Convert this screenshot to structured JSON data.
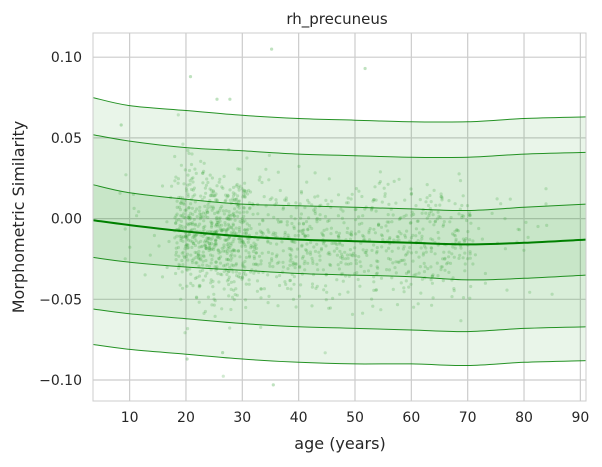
{
  "chart_data": {
    "type": "line",
    "title": "rh_precuneus",
    "xlabel": "age (years)",
    "ylabel": "Morphometric Similarity",
    "xlim": [
      3.5,
      91
    ],
    "ylim": [
      -0.113,
      0.115
    ],
    "xticks": [
      10,
      20,
      30,
      40,
      50,
      60,
      70,
      80,
      90
    ],
    "yticks": [
      -0.1,
      -0.05,
      0.0,
      0.05,
      0.1
    ],
    "ytick_labels": [
      "−0.10",
      "−0.05",
      "0.00",
      "0.05",
      "0.10"
    ],
    "grid": true,
    "line_color": "#008000",
    "fill_color": "#2ca02c",
    "point_color": "#2ca02c",
    "x": [
      3.5,
      10,
      20,
      30,
      40,
      50,
      60,
      70,
      80,
      91
    ],
    "series": [
      {
        "values": [
          0.075,
          0.07,
          0.067,
          0.064,
          0.062,
          0.061,
          0.06,
          0.06,
          0.062,
          0.063
        ]
      },
      {
        "values": [
          0.052,
          0.048,
          0.044,
          0.042,
          0.04,
          0.039,
          0.038,
          0.038,
          0.04,
          0.041
        ]
      },
      {
        "values": [
          0.021,
          0.016,
          0.012,
          0.009,
          0.008,
          0.007,
          0.006,
          0.005,
          0.007,
          0.009
        ]
      },
      {
        "values": [
          -0.001,
          -0.004,
          -0.008,
          -0.011,
          -0.013,
          -0.014,
          -0.015,
          -0.016,
          -0.015,
          -0.013
        ]
      },
      {
        "values": [
          -0.024,
          -0.027,
          -0.03,
          -0.032,
          -0.034,
          -0.035,
          -0.036,
          -0.038,
          -0.037,
          -0.035
        ]
      },
      {
        "values": [
          -0.056,
          -0.059,
          -0.062,
          -0.065,
          -0.067,
          -0.068,
          -0.069,
          -0.07,
          -0.068,
          -0.067
        ]
      },
      {
        "values": [
          -0.078,
          -0.081,
          -0.084,
          -0.087,
          -0.089,
          -0.09,
          -0.09,
          -0.091,
          -0.089,
          -0.088
        ]
      }
    ],
    "median_index": 3,
    "points": {
      "count": 1400,
      "outliers": [
        [
          35.2,
          0.105
        ],
        [
          51.8,
          0.093
        ],
        [
          20.8,
          0.088
        ],
        [
          25.5,
          0.074
        ],
        [
          27.8,
          0.074
        ],
        [
          8.5,
          0.058
        ],
        [
          35.5,
          -0.103
        ],
        [
          26.5,
          -0.083
        ],
        [
          20.2,
          -0.087
        ]
      ]
    }
  }
}
